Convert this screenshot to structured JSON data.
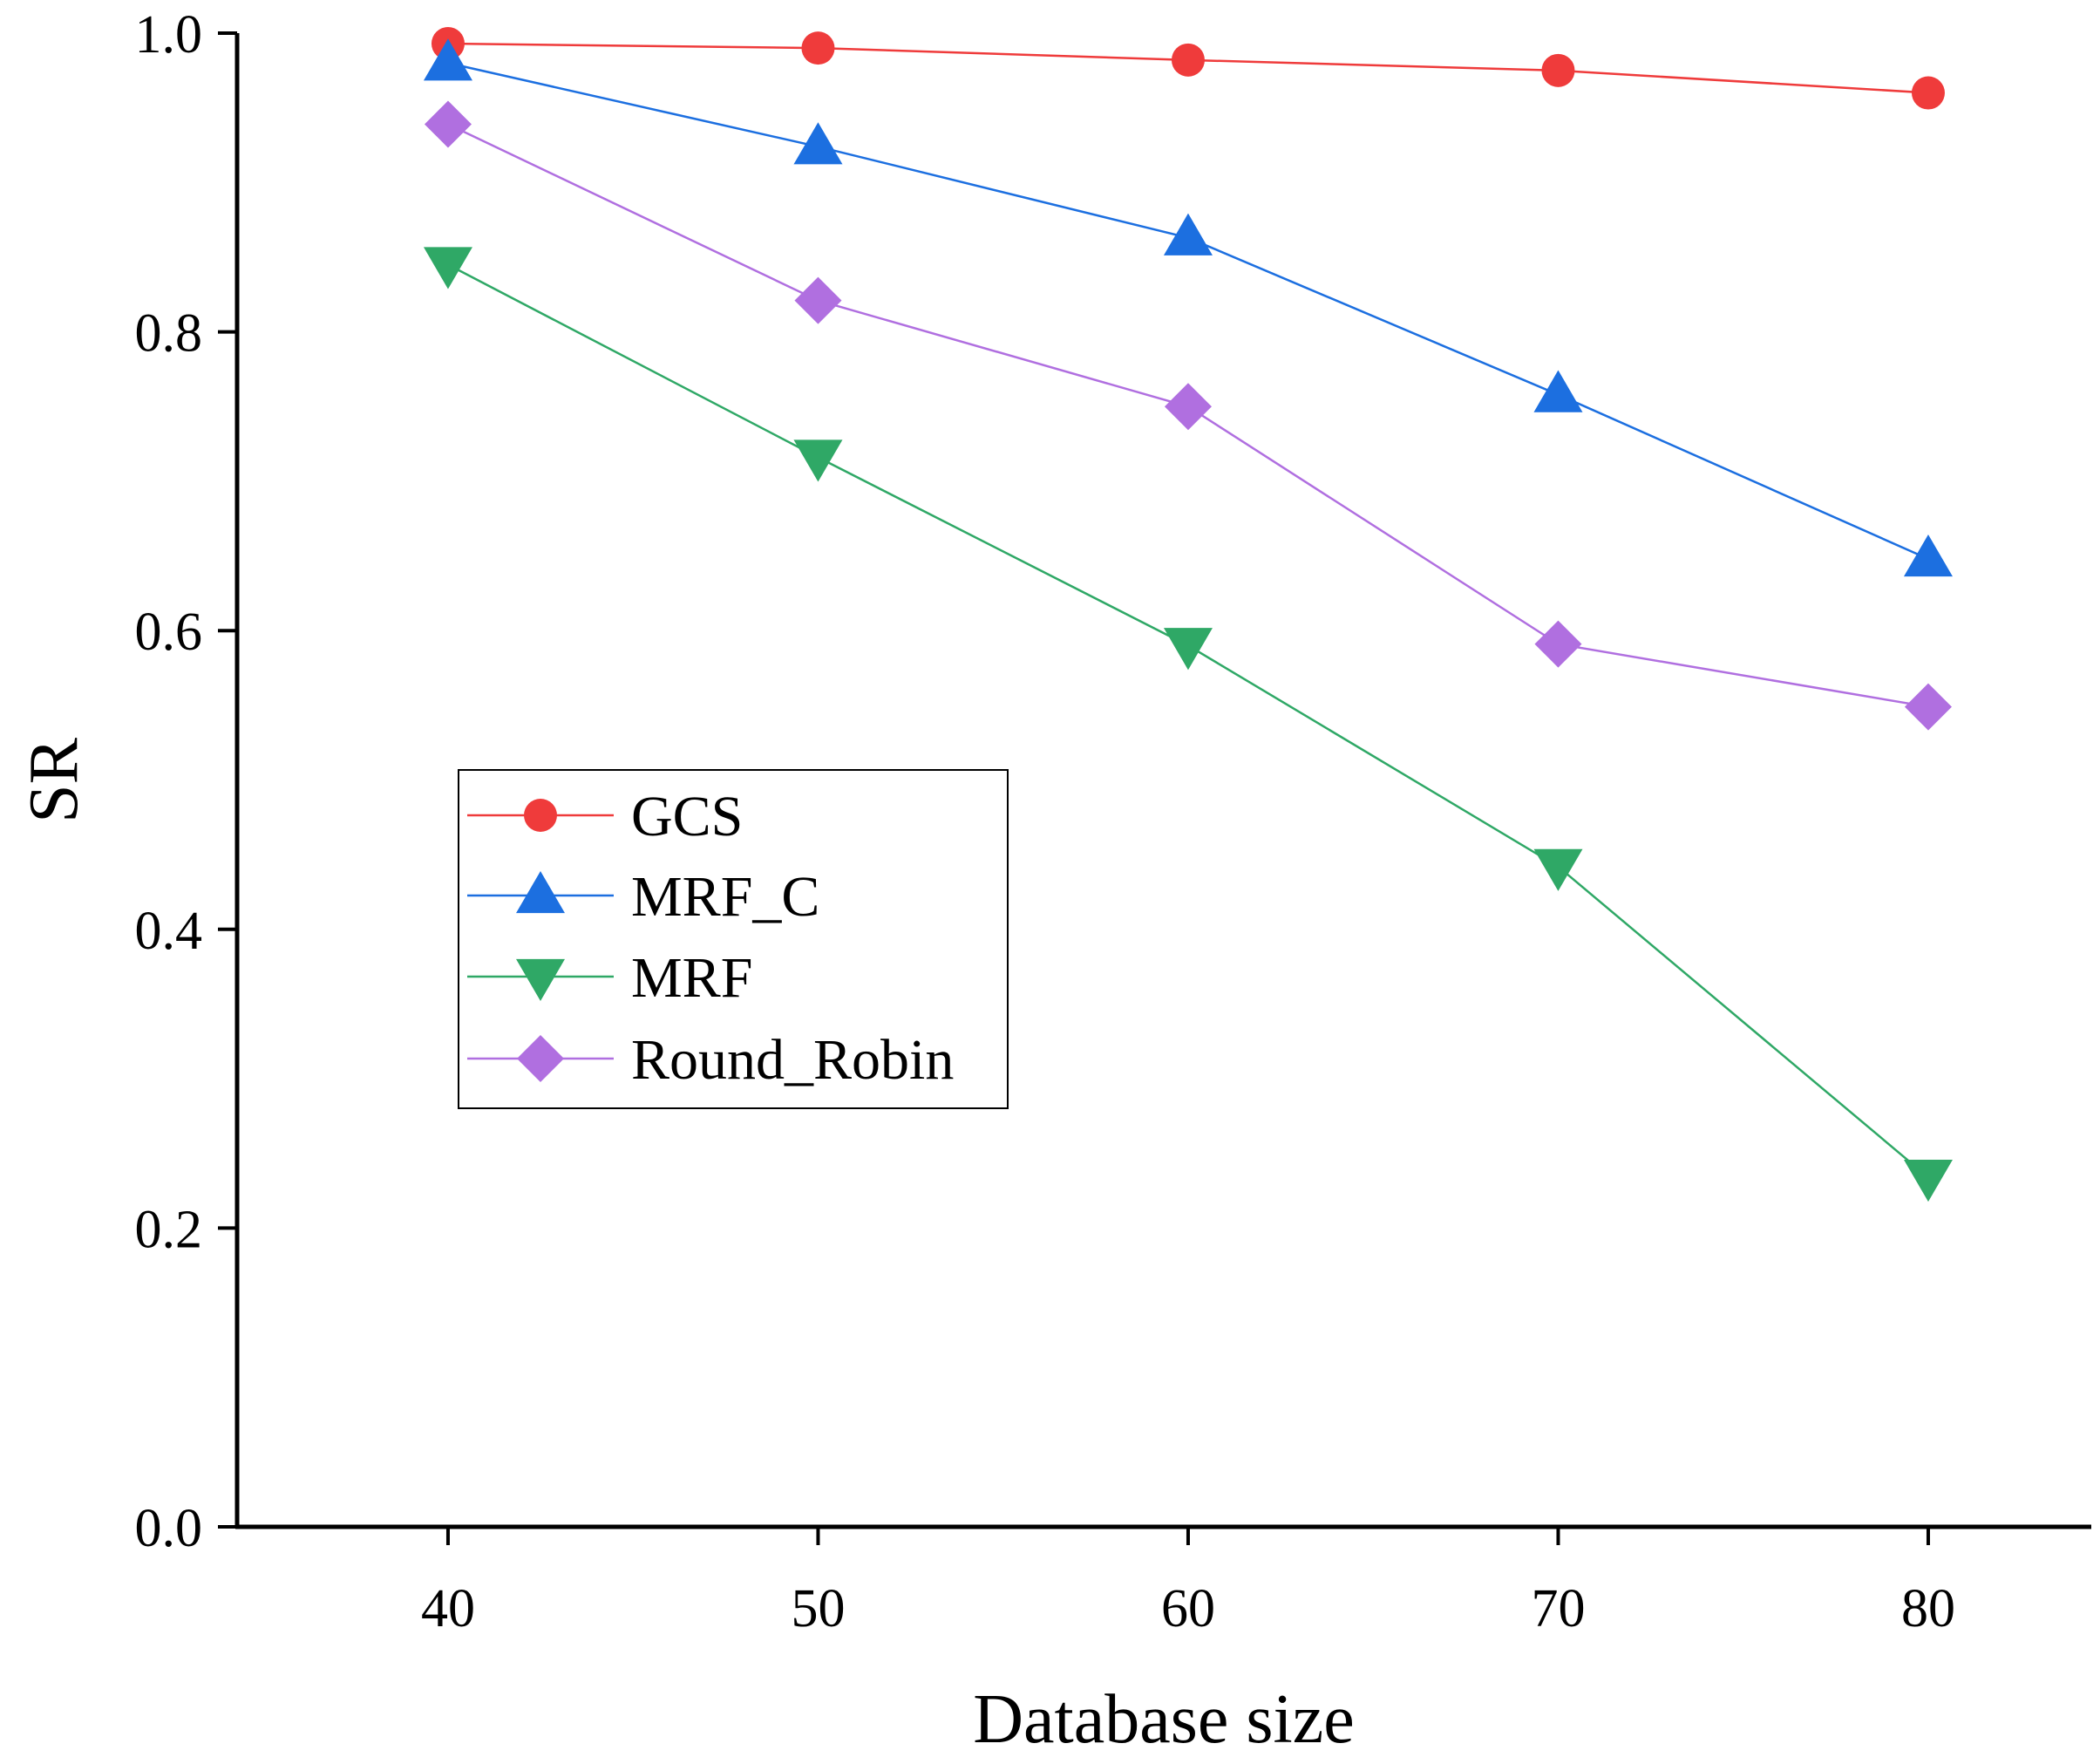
{
  "chart_data": {
    "type": "line",
    "title": "",
    "xlabel": "Database size",
    "ylabel": "SR",
    "x": [
      40,
      50,
      60,
      70,
      80
    ],
    "xticks": [
      "40",
      "50",
      "60",
      "70",
      "80"
    ],
    "xlim": [
      34.3,
      84.3
    ],
    "ylim": [
      0,
      1.0
    ],
    "yticks": [
      "0.0",
      "0.2",
      "0.4",
      "0.6",
      "0.8",
      "1.0"
    ],
    "grid": false,
    "legend_position": "center-left",
    "series": [
      {
        "name": "GCS",
        "marker": "circle",
        "color": "#ef3b3b",
        "values": [
          0.993,
          0.99,
          0.982,
          0.975,
          0.96
        ]
      },
      {
        "name": "MRF_C",
        "marker": "triangle-up",
        "color": "#1c6fe0",
        "values": [
          0.98,
          0.924,
          0.863,
          0.758,
          0.648
        ]
      },
      {
        "name": "MRF",
        "marker": "triangle-down",
        "color": "#2fa866",
        "values": [
          0.845,
          0.716,
          0.59,
          0.442,
          0.234
        ]
      },
      {
        "name": "Round_Robin",
        "marker": "diamond",
        "color": "#b06fe0",
        "values": [
          0.939,
          0.821,
          0.75,
          0.591,
          0.549
        ]
      }
    ]
  }
}
